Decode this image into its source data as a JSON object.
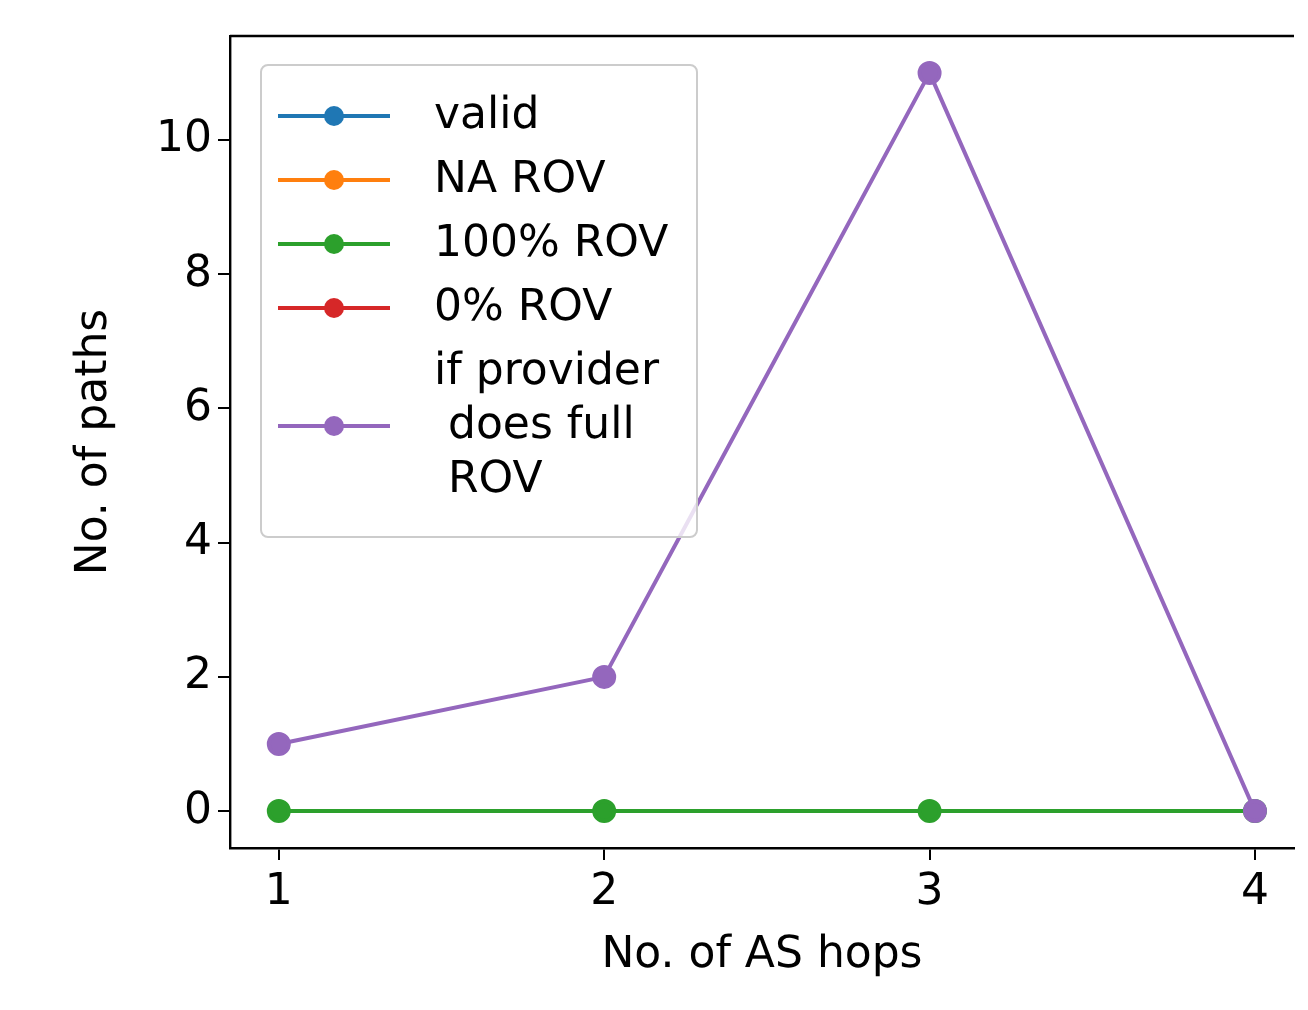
{
  "chart_data": {
    "type": "line",
    "xlabel": "No. of AS hops",
    "ylabel": "No. of paths",
    "x": [
      1,
      2,
      3,
      4
    ],
    "series": [
      {
        "name": "valid",
        "color": "#1f77b4",
        "values": [
          null,
          null,
          null,
          null
        ]
      },
      {
        "name": "NA ROV",
        "color": "#ff7f0e",
        "values": [
          null,
          null,
          null,
          null
        ]
      },
      {
        "name": "100% ROV",
        "color": "#2ca02c",
        "values": [
          0,
          0,
          0,
          0
        ]
      },
      {
        "name": "0% ROV",
        "color": "#d62728",
        "values": [
          null,
          null,
          null,
          null
        ]
      },
      {
        "name": "if provider\n does full\n ROV",
        "color": "#9467bd",
        "values": [
          1,
          2,
          11,
          0
        ]
      }
    ],
    "xlim": [
      0.85,
      4.12
    ],
    "xticks": [
      1,
      2,
      3,
      4
    ],
    "ylim": [
      -0.55,
      11.55
    ],
    "yticks": [
      0,
      2,
      4,
      6,
      8,
      10
    ],
    "grid": false,
    "legend": "top left",
    "marker": "circle",
    "line_style": "solid"
  }
}
